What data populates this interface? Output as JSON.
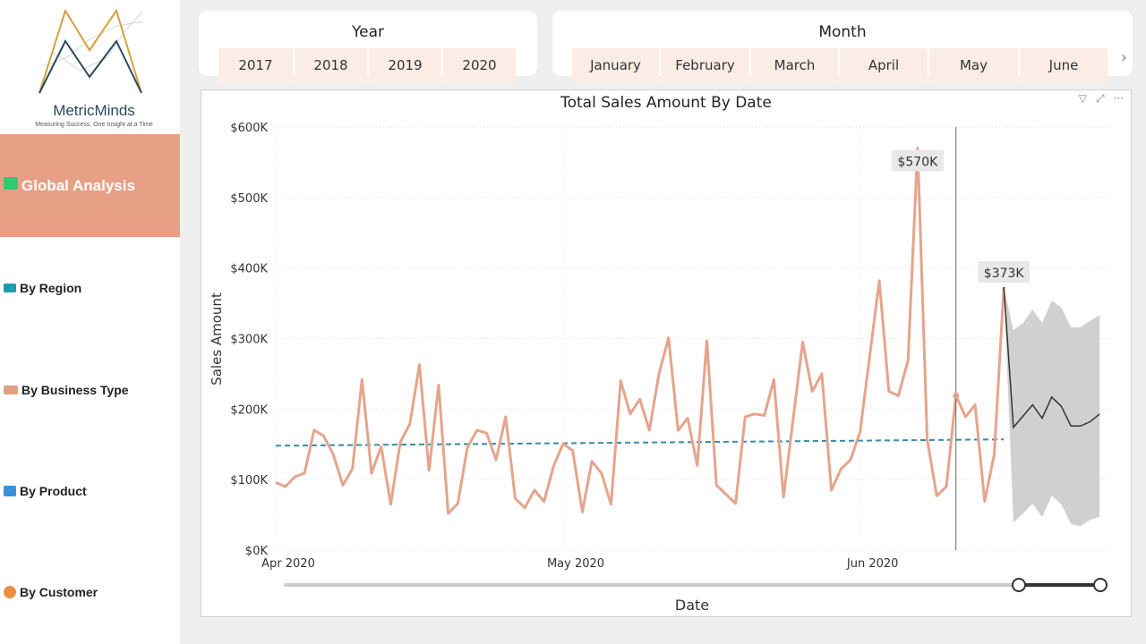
{
  "logo": {
    "brand": "MetricMinds",
    "tagline": "Measuring Success, One Insight at a Time"
  },
  "sidebar": {
    "items": [
      {
        "label": "Global Analysis",
        "icon": "check-icon",
        "color": "#2ecc71",
        "active": true
      },
      {
        "label": "By Region",
        "icon": "map-icon",
        "color": "#1a9fb0"
      },
      {
        "label": "By Business Type",
        "icon": "handshake-icon",
        "color": "#e0a080"
      },
      {
        "label": "By Product",
        "icon": "shopping-bag-icon",
        "color": "#3a8fd8"
      },
      {
        "label": "By Customer",
        "icon": "customer-icon",
        "color": "#e89040"
      }
    ]
  },
  "slicers": {
    "year": {
      "title": "Year",
      "options": [
        "2017",
        "2018",
        "2019",
        "2020"
      ]
    },
    "month": {
      "title": "Month",
      "options": [
        "January",
        "February",
        "March",
        "April",
        "May",
        "June"
      ]
    }
  },
  "colors": {
    "accent": "#E7A085",
    "line": "#E5A48C",
    "trend": "#3a8aa8",
    "forecast": "#333333",
    "band": "#d0d0d0",
    "slicer_bg": "#FBEDE6"
  },
  "chart_data": {
    "type": "line",
    "title": "Total Sales Amount By Date",
    "xlabel": "Date",
    "ylabel": "Sales Amount",
    "ylim": [
      0,
      600000
    ],
    "yticks": [
      "$0K",
      "$100K",
      "$200K",
      "$300K",
      "$400K",
      "$500K",
      "$600K"
    ],
    "xticks": [
      {
        "label": "Apr 2020",
        "date": "2020-04-01"
      },
      {
        "label": "May 2020",
        "date": "2020-05-01"
      },
      {
        "label": "Jun 2020",
        "date": "2020-06-01"
      }
    ],
    "grid": true,
    "start_date": "2020-04-01",
    "values": [
      96,
      90,
      104,
      109,
      170,
      162,
      136,
      92,
      115,
      242,
      109,
      147,
      65,
      153,
      179,
      263,
      113,
      234,
      52,
      66,
      145,
      170,
      166,
      128,
      189,
      73,
      60,
      85,
      69,
      119,
      151,
      141,
      54,
      126,
      109,
      65,
      240,
      193,
      214,
      170,
      250,
      301,
      170,
      187,
      120,
      297,
      92,
      79,
      66,
      189,
      193,
      191,
      242,
      75,
      185,
      295,
      225,
      250,
      85,
      115,
      128,
      168,
      275,
      382,
      225,
      219,
      269,
      570,
      157,
      77,
      90,
      219,
      189,
      206,
      69,
      136,
      373
    ],
    "value_unit": "thousands USD",
    "trend_line": {
      "start": 148,
      "end": 157
    },
    "forecast": {
      "start_date": "2020-06-17",
      "values": [
        174,
        190,
        206,
        187,
        217,
        204,
        176,
        176,
        182,
        193
      ],
      "upper": [
        312,
        322,
        341,
        322,
        354,
        344,
        316,
        316,
        325,
        333
      ],
      "lower": [
        39,
        52,
        66,
        47,
        77,
        65,
        37,
        34,
        43,
        47
      ]
    },
    "data_labels": [
      {
        "date": "2020-06-07",
        "text": "$570K"
      },
      {
        "date": "2020-06-16",
        "text": "$373K"
      }
    ],
    "hover_date": "2020-06-11",
    "range_slider": {
      "start": 0.9,
      "end": 1.0
    }
  }
}
